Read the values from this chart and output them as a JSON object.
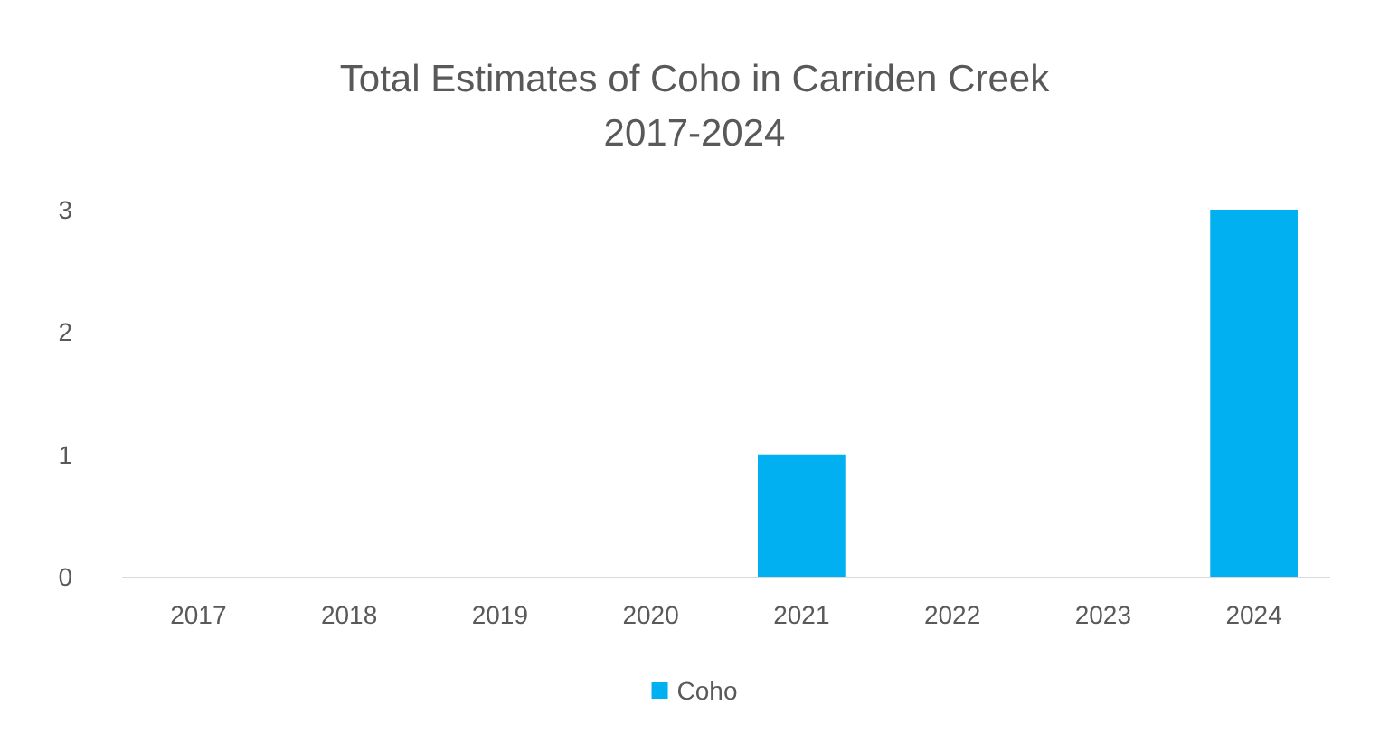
{
  "chart_data": {
    "type": "bar",
    "title": "Total Estimates of Coho in Carriden Creek\n2017-2024",
    "categories": [
      "2017",
      "2018",
      "2019",
      "2020",
      "2021",
      "2022",
      "2023",
      "2024"
    ],
    "series": [
      {
        "name": "Coho",
        "color": "#00b0f0",
        "values": [
          0,
          0,
          0,
          0,
          1,
          0,
          0,
          3
        ]
      }
    ],
    "ylim": [
      0,
      3
    ],
    "yticks": [
      0,
      1,
      2,
      3
    ],
    "grid": false,
    "legend": "bottom"
  }
}
